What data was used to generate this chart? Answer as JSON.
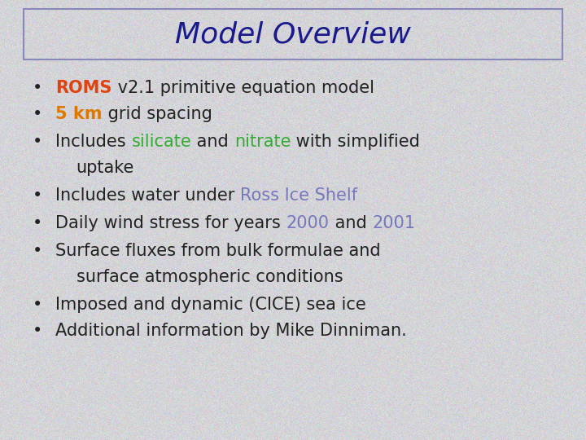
{
  "title": "Model Overview",
  "title_color": "#1a1a8c",
  "background_color": "#d4d4d8",
  "box_edge_color": "#8888bb",
  "dark_text": "#222222",
  "bullet_char": "•",
  "lines": [
    [
      {
        "text": "ROMS",
        "color": "#dd4411",
        "bold": true
      },
      {
        "text": " v2.1 primitive equation model",
        "color": "#222222",
        "bold": false
      }
    ],
    [
      {
        "text": "5 km",
        "color": "#dd7700",
        "bold": true
      },
      {
        "text": " grid spacing",
        "color": "#222222",
        "bold": false
      }
    ],
    [
      {
        "text": "Includes ",
        "color": "#222222",
        "bold": false
      },
      {
        "text": "silicate",
        "color": "#33aa33",
        "bold": false
      },
      {
        "text": " and ",
        "color": "#222222",
        "bold": false
      },
      {
        "text": "nitrate",
        "color": "#33aa33",
        "bold": false
      },
      {
        "text": " with simplified",
        "color": "#222222",
        "bold": false
      }
    ],
    [
      {
        "text": "uptake",
        "color": "#222222",
        "bold": false
      }
    ],
    [
      {
        "text": "Includes water under ",
        "color": "#222222",
        "bold": false
      },
      {
        "text": "Ross Ice Shelf",
        "color": "#7777bb",
        "bold": false
      }
    ],
    [
      {
        "text": "Daily wind stress for years ",
        "color": "#222222",
        "bold": false
      },
      {
        "text": "2000",
        "color": "#7777bb",
        "bold": false
      },
      {
        "text": " and ",
        "color": "#222222",
        "bold": false
      },
      {
        "text": "2001",
        "color": "#7777bb",
        "bold": false
      }
    ],
    [
      {
        "text": "Surface fluxes from bulk formulae and",
        "color": "#222222",
        "bold": false
      }
    ],
    [
      {
        "text": "surface atmospheric conditions",
        "color": "#222222",
        "bold": false
      }
    ],
    [
      {
        "text": "Imposed and dynamic (CICE) sea ice",
        "color": "#222222",
        "bold": false
      }
    ],
    [
      {
        "text": "Additional information by Mike Dinniman.",
        "color": "#222222",
        "bold": false
      }
    ]
  ],
  "has_bullet": [
    true,
    true,
    true,
    false,
    true,
    true,
    true,
    false,
    true,
    true
  ],
  "indent": [
    false,
    false,
    false,
    true,
    false,
    false,
    false,
    true,
    false,
    false
  ],
  "font_family": "Comic Sans MS",
  "title_fontsize": 26,
  "body_fontsize": 15,
  "figsize": [
    7.2,
    5.4
  ],
  "dpi": 100
}
